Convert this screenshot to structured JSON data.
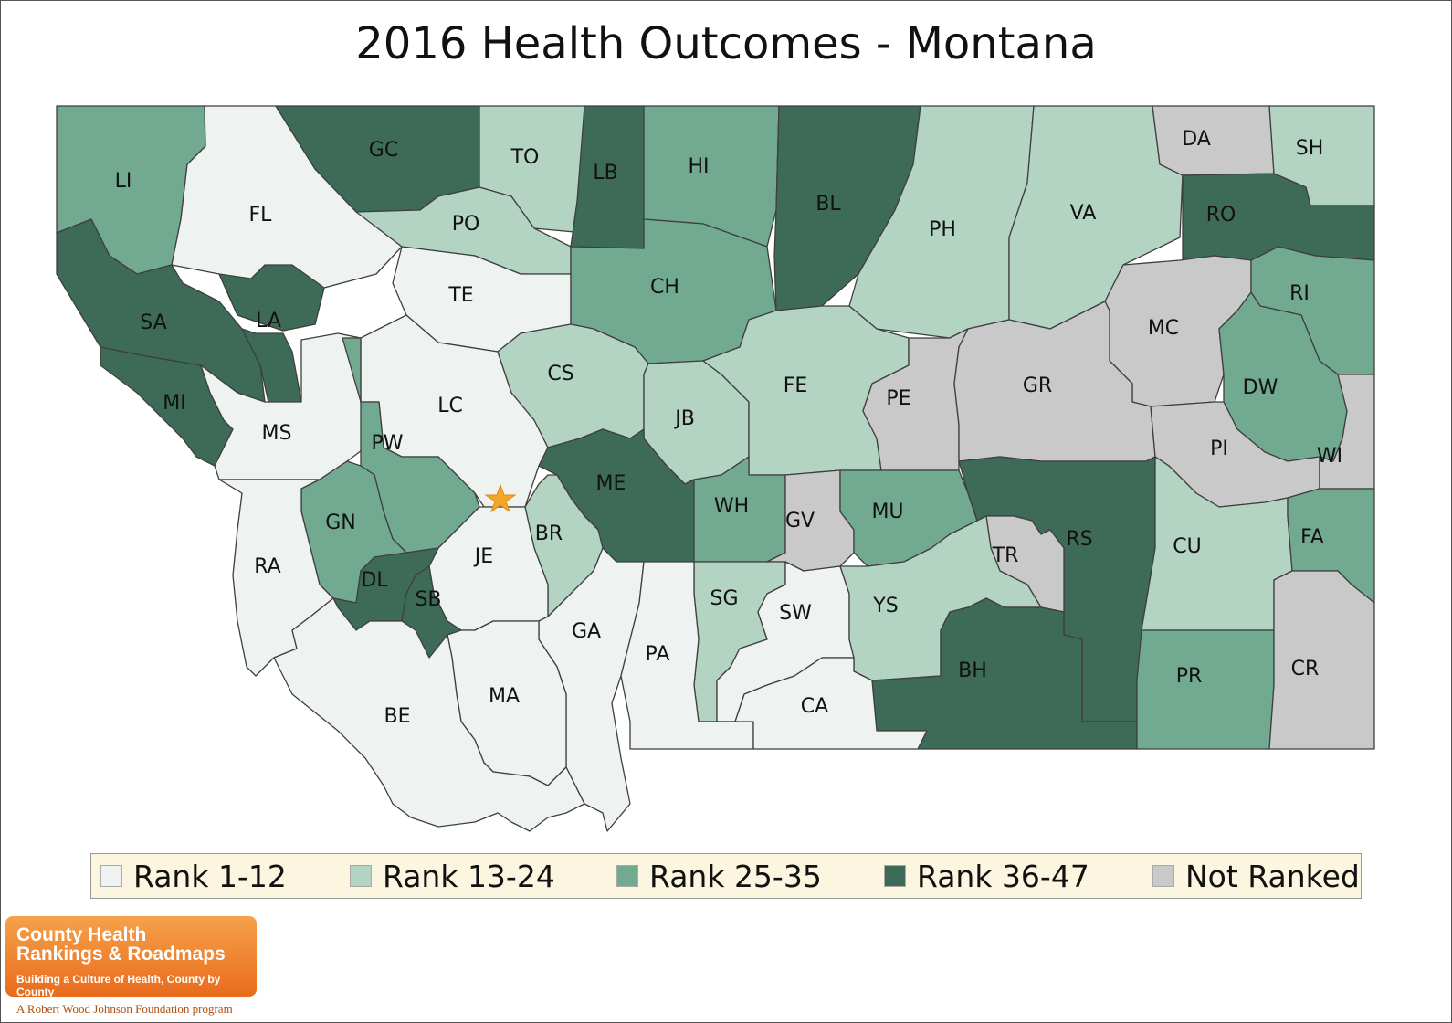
{
  "title": "2016 Health Outcomes - Montana",
  "colors": {
    "rank_1_12": "#eef2f1",
    "rank_13_24": "#b3d3c3",
    "rank_25_35": "#72aa91",
    "rank_36_47": "#3d6b57",
    "not_ranked": "#c9c9c9"
  },
  "legend": [
    {
      "label": "Rank 1-12",
      "color": "#eef2f1"
    },
    {
      "label": "Rank 13-24",
      "color": "#b3d3c3"
    },
    {
      "label": "Rank 25-35",
      "color": "#72aa91"
    },
    {
      "label": "Rank 36-47",
      "color": "#3d6b57"
    },
    {
      "label": "Not Ranked",
      "color": "#c9c9c9"
    }
  ],
  "counties": [
    {
      "code": "LI",
      "category": "Rank 25-35"
    },
    {
      "code": "FL",
      "category": "Rank 1-12"
    },
    {
      "code": "GC",
      "category": "Rank 36-47"
    },
    {
      "code": "TO",
      "category": "Rank 13-24"
    },
    {
      "code": "LB",
      "category": "Rank 36-47"
    },
    {
      "code": "HI",
      "category": "Rank 25-35"
    },
    {
      "code": "BL",
      "category": "Rank 36-47"
    },
    {
      "code": "PH",
      "category": "Rank 13-24"
    },
    {
      "code": "VA",
      "category": "Rank 13-24"
    },
    {
      "code": "DA",
      "category": "Not Ranked"
    },
    {
      "code": "SH",
      "category": "Rank 13-24"
    },
    {
      "code": "RO",
      "category": "Rank 36-47"
    },
    {
      "code": "PO",
      "category": "Rank 13-24"
    },
    {
      "code": "SA",
      "category": "Rank 36-47"
    },
    {
      "code": "LA",
      "category": "Rank 36-47"
    },
    {
      "code": "TE",
      "category": "Rank 1-12"
    },
    {
      "code": "CH",
      "category": "Rank 25-35"
    },
    {
      "code": "MC",
      "category": "Not Ranked"
    },
    {
      "code": "RI",
      "category": "Rank 25-35"
    },
    {
      "code": "MI",
      "category": "Rank 36-47"
    },
    {
      "code": "MS",
      "category": "Rank 1-12"
    },
    {
      "code": "LC",
      "category": "Rank 1-12"
    },
    {
      "code": "CS",
      "category": "Rank 13-24"
    },
    {
      "code": "JB",
      "category": "Rank 13-24"
    },
    {
      "code": "FE",
      "category": "Rank 13-24"
    },
    {
      "code": "PE",
      "category": "Not Ranked"
    },
    {
      "code": "GR",
      "category": "Not Ranked"
    },
    {
      "code": "DW",
      "category": "Rank 25-35"
    },
    {
      "code": "PW",
      "category": "Rank 25-35"
    },
    {
      "code": "PI",
      "category": "Not Ranked"
    },
    {
      "code": "WI",
      "category": "Not Ranked"
    },
    {
      "code": "ME",
      "category": "Rank 36-47"
    },
    {
      "code": "WH",
      "category": "Rank 25-35"
    },
    {
      "code": "GV",
      "category": "Not Ranked"
    },
    {
      "code": "MU",
      "category": "Rank 25-35"
    },
    {
      "code": "RS",
      "category": "Rank 36-47"
    },
    {
      "code": "CU",
      "category": "Rank 13-24"
    },
    {
      "code": "FA",
      "category": "Rank 25-35"
    },
    {
      "code": "GN",
      "category": "Rank 25-35"
    },
    {
      "code": "BR",
      "category": "Rank 13-24"
    },
    {
      "code": "JE",
      "category": "Rank 1-12"
    },
    {
      "code": "TR",
      "category": "Not Ranked"
    },
    {
      "code": "RA",
      "category": "Rank 1-12"
    },
    {
      "code": "DL",
      "category": "Rank 36-47"
    },
    {
      "code": "SB",
      "category": "Rank 36-47"
    },
    {
      "code": "SG",
      "category": "Rank 13-24"
    },
    {
      "code": "SW",
      "category": "Rank 1-12"
    },
    {
      "code": "YS",
      "category": "Rank 13-24"
    },
    {
      "code": "GA",
      "category": "Rank 1-12"
    },
    {
      "code": "PA",
      "category": "Rank 1-12"
    },
    {
      "code": "BH",
      "category": "Rank 36-47"
    },
    {
      "code": "PR",
      "category": "Rank 25-35"
    },
    {
      "code": "CR",
      "category": "Not Ranked"
    },
    {
      "code": "MA",
      "category": "Rank 1-12"
    },
    {
      "code": "CA",
      "category": "Rank 1-12"
    },
    {
      "code": "BE",
      "category": "Rank 1-12"
    }
  ],
  "logo": {
    "line1": "County Health",
    "line2": "Rankings & Roadmaps",
    "tagline": "Building a Culture of Health, County by County",
    "program": "A Robert Wood Johnson Foundation program"
  }
}
